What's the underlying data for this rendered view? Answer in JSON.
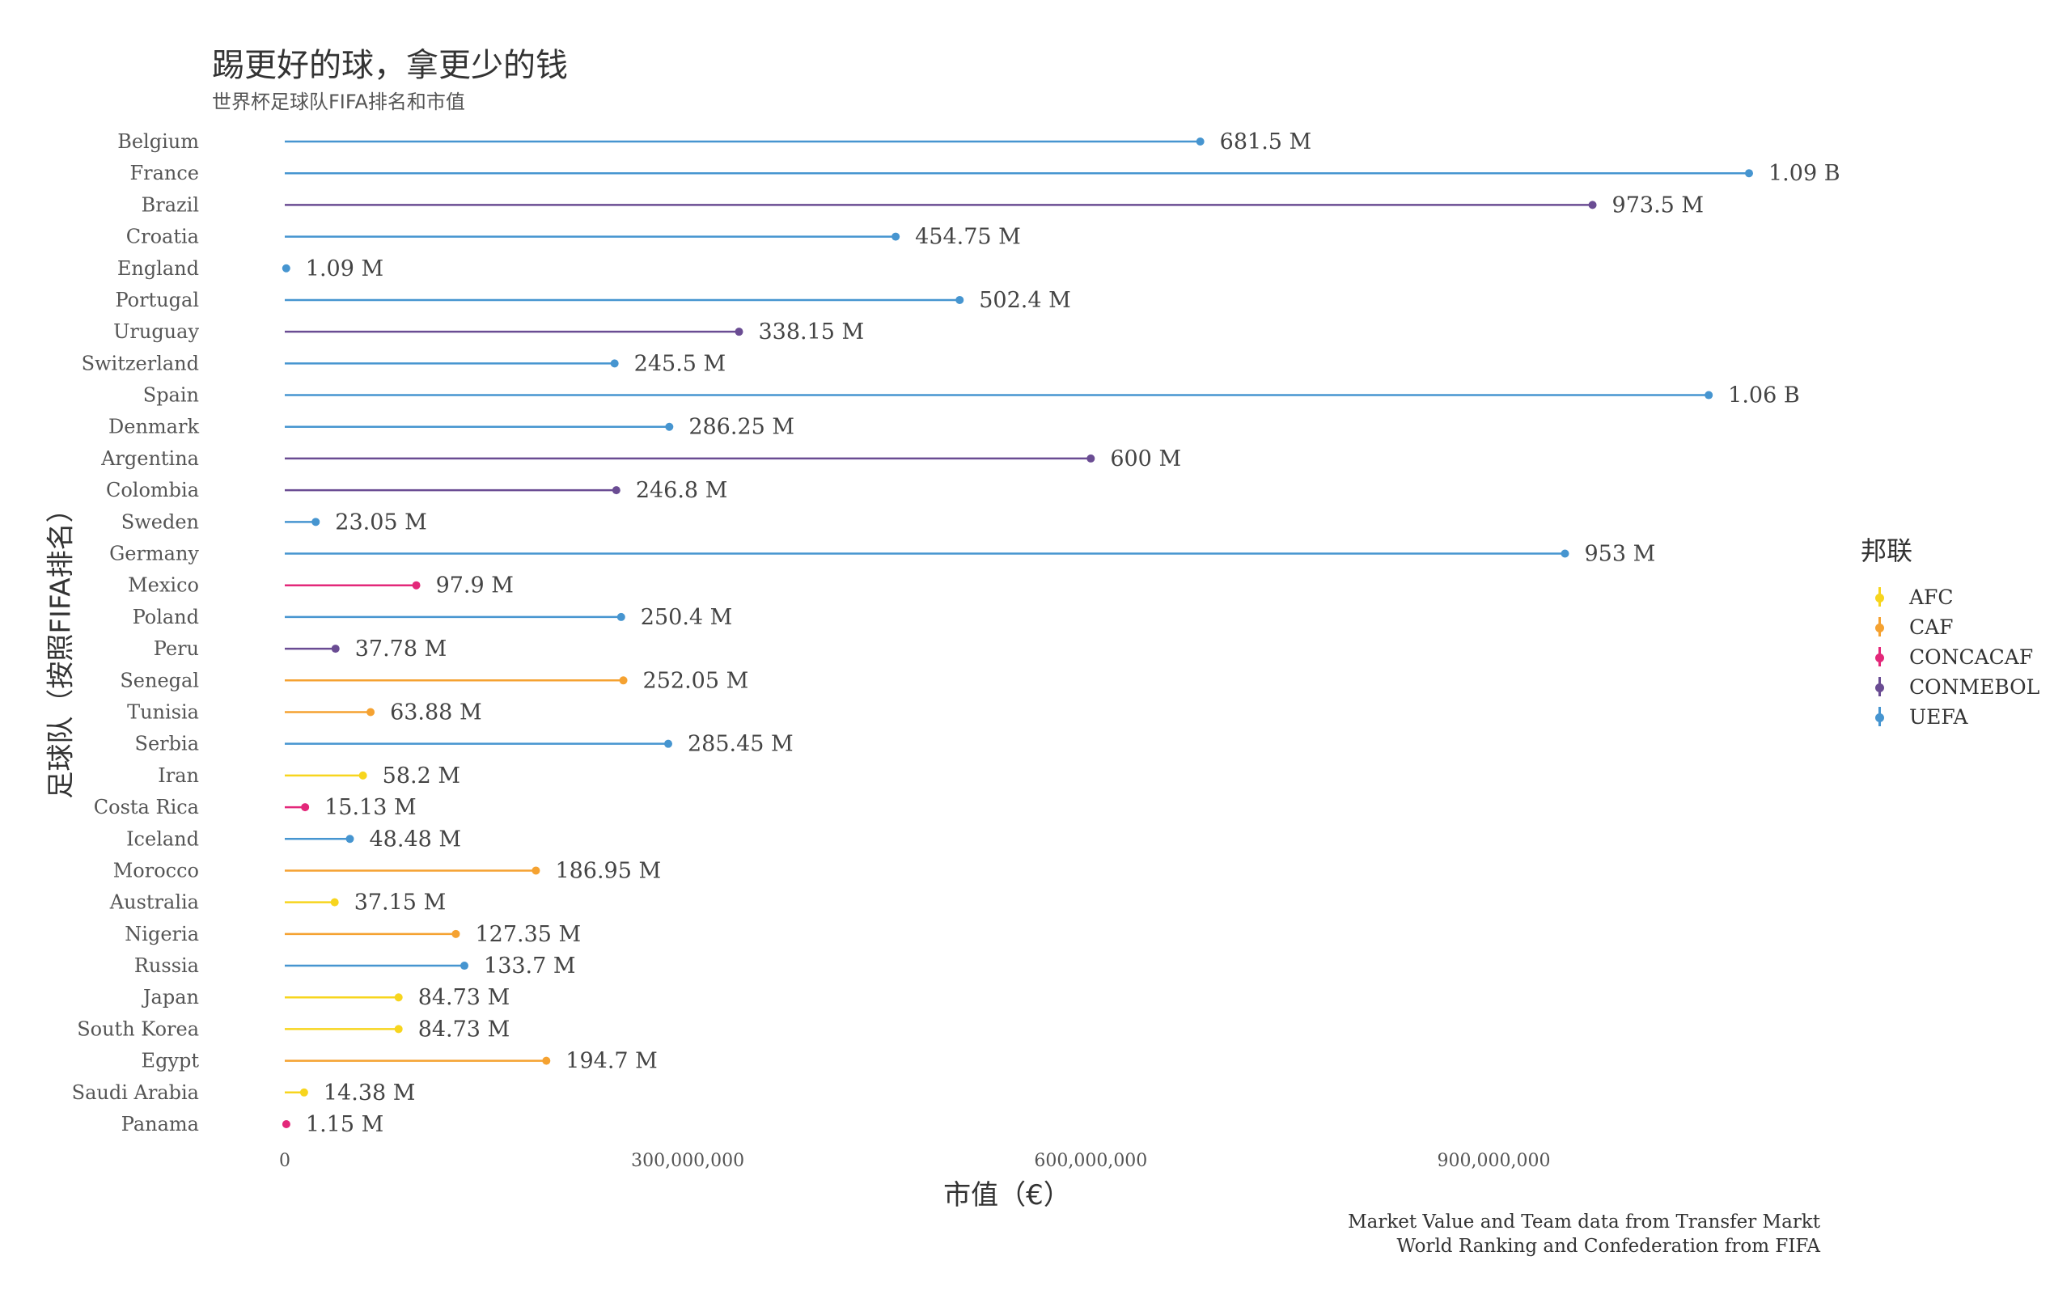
{
  "chart_data": {
    "type": "lollipop",
    "title": "踢更好的球，拿更少的钱",
    "subtitle": "世界杯足球队FIFA排名和市值",
    "xlabel": "市值（€）",
    "ylabel": "足球队（按照FIFA排名）",
    "xlim": [
      0,
      1090000000
    ],
    "x_ticks": [
      0,
      300000000,
      600000000,
      900000000
    ],
    "x_tick_labels": [
      "0",
      "300,000,000",
      "600,000,000",
      "900,000,000"
    ],
    "grid": false,
    "legend": {
      "title": "邦联",
      "placement": "right",
      "entries": [
        {
          "name": "AFC",
          "color": "#f7d51e"
        },
        {
          "name": "CAF",
          "color": "#f5a231"
        },
        {
          "name": "CONCACAF",
          "color": "#e3287a"
        },
        {
          "name": "CONMEBOL",
          "color": "#6a4c93"
        },
        {
          "name": "UEFA",
          "color": "#4695d0"
        }
      ]
    },
    "teams": [
      {
        "team": "Belgium",
        "value": 681500000,
        "label": "681.5 M",
        "confederation": "UEFA"
      },
      {
        "team": "France",
        "value": 1090000000,
        "label": "1.09 B",
        "confederation": "UEFA"
      },
      {
        "team": "Brazil",
        "value": 973500000,
        "label": "973.5 M",
        "confederation": "CONMEBOL"
      },
      {
        "team": "Croatia",
        "value": 454750000,
        "label": "454.75 M",
        "confederation": "UEFA"
      },
      {
        "team": "England",
        "value": 1090000,
        "label": "1.09 M",
        "confederation": "UEFA"
      },
      {
        "team": "Portugal",
        "value": 502400000,
        "label": "502.4 M",
        "confederation": "UEFA"
      },
      {
        "team": "Uruguay",
        "value": 338150000,
        "label": "338.15 M",
        "confederation": "CONMEBOL"
      },
      {
        "team": "Switzerland",
        "value": 245500000,
        "label": "245.5 M",
        "confederation": "UEFA"
      },
      {
        "team": "Spain",
        "value": 1060000000,
        "label": "1.06 B",
        "confederation": "UEFA"
      },
      {
        "team": "Denmark",
        "value": 286250000,
        "label": "286.25 M",
        "confederation": "UEFA"
      },
      {
        "team": "Argentina",
        "value": 600000000,
        "label": "600 M",
        "confederation": "CONMEBOL"
      },
      {
        "team": "Colombia",
        "value": 246800000,
        "label": "246.8 M",
        "confederation": "CONMEBOL"
      },
      {
        "team": "Sweden",
        "value": 23050000,
        "label": "23.05 M",
        "confederation": "UEFA"
      },
      {
        "team": "Germany",
        "value": 953000000,
        "label": "953 M",
        "confederation": "UEFA"
      },
      {
        "team": "Mexico",
        "value": 97900000,
        "label": "97.9 M",
        "confederation": "CONCACAF"
      },
      {
        "team": "Poland",
        "value": 250400000,
        "label": "250.4 M",
        "confederation": "UEFA"
      },
      {
        "team": "Peru",
        "value": 37780000,
        "label": "37.78 M",
        "confederation": "CONMEBOL"
      },
      {
        "team": "Senegal",
        "value": 252050000,
        "label": "252.05 M",
        "confederation": "CAF"
      },
      {
        "team": "Tunisia",
        "value": 63880000,
        "label": "63.88 M",
        "confederation": "CAF"
      },
      {
        "team": "Serbia",
        "value": 285450000,
        "label": "285.45 M",
        "confederation": "UEFA"
      },
      {
        "team": "Iran",
        "value": 58200000,
        "label": "58.2 M",
        "confederation": "AFC"
      },
      {
        "team": "Costa Rica",
        "value": 15130000,
        "label": "15.13 M",
        "confederation": "CONCACAF"
      },
      {
        "team": "Iceland",
        "value": 48480000,
        "label": "48.48 M",
        "confederation": "UEFA"
      },
      {
        "team": "Morocco",
        "value": 186950000,
        "label": "186.95 M",
        "confederation": "CAF"
      },
      {
        "team": "Australia",
        "value": 37150000,
        "label": "37.15 M",
        "confederation": "AFC"
      },
      {
        "team": "Nigeria",
        "value": 127350000,
        "label": "127.35 M",
        "confederation": "CAF"
      },
      {
        "team": "Russia",
        "value": 133700000,
        "label": "133.7 M",
        "confederation": "UEFA"
      },
      {
        "team": "Japan",
        "value": 84730000,
        "label": "84.73 M",
        "confederation": "AFC"
      },
      {
        "team": "South Korea",
        "value": 84730000,
        "label": "84.73 M",
        "confederation": "AFC"
      },
      {
        "team": "Egypt",
        "value": 194700000,
        "label": "194.7 M",
        "confederation": "CAF"
      },
      {
        "team": "Saudi Arabia",
        "value": 14380000,
        "label": "14.38 M",
        "confederation": "AFC"
      },
      {
        "team": "Panama",
        "value": 1150000,
        "label": "1.15 M",
        "confederation": "CONCACAF"
      }
    ],
    "caption": [
      "Market Value and Team data from Transfer Markt",
      "World Ranking and Confederation from FIFA"
    ]
  }
}
